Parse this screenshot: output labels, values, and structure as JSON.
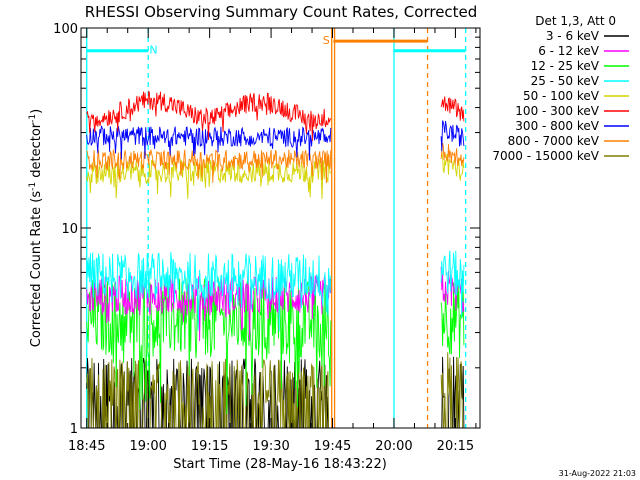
{
  "chart_data": {
    "type": "line",
    "title": "RHESSI Observing Summary Count Rates, Corrected",
    "xlabel": "Start Time (28-May-16 18:43:22)",
    "ylabel_main": "Corrected Count Rate (s",
    "ylabel_sup1": "-1",
    "ylabel_mid": " detector",
    "ylabel_sup2": "-1",
    "ylabel_end": ")",
    "y_scale": "log",
    "ylim": [
      1,
      100
    ],
    "xlim_minutes": [
      -1.4,
      96
    ],
    "x_ticks": [
      {
        "label": "18:45",
        "minute": 0
      },
      {
        "label": "19:00",
        "minute": 15
      },
      {
        "label": "19:15",
        "minute": 30
      },
      {
        "label": "19:30",
        "minute": 45
      },
      {
        "label": "19:45",
        "minute": 60
      },
      {
        "label": "20:00",
        "minute": 75
      },
      {
        "label": "20:15",
        "minute": 90
      }
    ],
    "y_ticks": [
      {
        "label": "1",
        "value": 1
      },
      {
        "label": "10",
        "value": 10
      },
      {
        "label": "100",
        "value": 100
      }
    ],
    "legend_title": "Det 1,3, Att 0",
    "legend_position": "top-right, outside plot",
    "series": [
      {
        "name": "3 - 6 keV",
        "color": "#000000",
        "level": 1.6,
        "level_end": 1.6,
        "spread": 0.6,
        "floor": true
      },
      {
        "name": "6 - 12 keV",
        "color": "#ff00ff",
        "level": 4.6,
        "level_end": 4.6,
        "spread": 0.1
      },
      {
        "name": "12 - 25 keV",
        "color": "#00ff00",
        "level": 3.6,
        "level_end": 3.4,
        "spread": 0.2
      },
      {
        "name": "25 - 50 keV",
        "color": "#00ffff",
        "level": 5.8,
        "level_end": 5.6,
        "spread": 0.12
      },
      {
        "name": "50 - 100 keV",
        "color": "#d4d400",
        "level": 19,
        "level_end": 19.5,
        "spread": 0.06
      },
      {
        "name": "100 - 300 keV",
        "color": "#ff0000",
        "level": 40,
        "level_end": 38,
        "spread": 0.05
      },
      {
        "name": "300 - 800 keV",
        "color": "#0000ff",
        "level": 29,
        "level_end": 28,
        "spread": 0.05
      },
      {
        "name": "800 - 7000 keV",
        "color": "#ff8000",
        "level": 22,
        "level_end": 22,
        "spread": 0.05
      },
      {
        "name": "7000 - 15000 keV",
        "color": "#808000",
        "level": 1.6,
        "level_end": 1.6,
        "spread": 0.5,
        "floor": true
      }
    ],
    "data_segments_minutes": [
      [
        0,
        59.5
      ],
      [
        86.5,
        92
      ]
    ],
    "flags": [
      {
        "label": "N",
        "color": "#00ffff",
        "start_minute": 0,
        "end_minute": 15,
        "level": 77,
        "label_minute": 15.3
      },
      {
        "label": "",
        "color": "#00ffff",
        "start_minute": 75,
        "end_minute": 92.5,
        "level": 77
      },
      {
        "label": "S",
        "color": "#ff8000",
        "start_minute": 60.2,
        "end_minute": 83.2,
        "level": 86,
        "label_minute": 57.6
      }
    ],
    "vertical_markers": [
      {
        "minute": 0,
        "color": "#00ffff",
        "style": "solid"
      },
      {
        "minute": 15,
        "color": "#00ffff",
        "style": "dashed"
      },
      {
        "minute": 59.8,
        "color": "#ff8000",
        "style": "solid"
      },
      {
        "minute": 60.5,
        "color": "#ff8000",
        "style": "solid"
      },
      {
        "minute": 75,
        "color": "#00ffff",
        "style": "solid"
      },
      {
        "minute": 83.2,
        "color": "#ff8000",
        "style": "dashed"
      },
      {
        "minute": 92.5,
        "color": "#00ffff",
        "style": "dashed"
      }
    ],
    "footer_timestamp": "31-Aug-2022 21:03"
  }
}
